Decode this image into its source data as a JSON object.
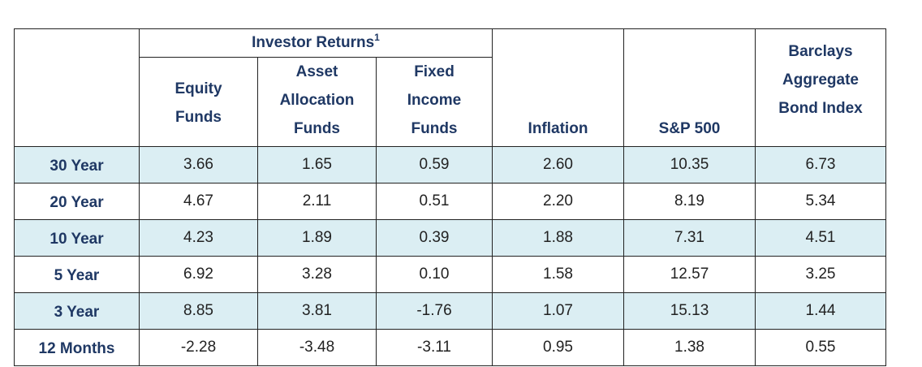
{
  "table": {
    "group_header": "Investor Returns",
    "group_footnote": "1",
    "columns": {
      "equity": [
        "Equity",
        "Funds"
      ],
      "asset": [
        "Asset",
        "Allocation",
        "Funds"
      ],
      "fixed": [
        "Fixed",
        "Income",
        "Funds"
      ],
      "inflation": "Inflation",
      "sp500": "S&P 500",
      "barclays": [
        "Barclays",
        "Aggregate",
        "Bond Index"
      ]
    },
    "rows": [
      {
        "label": "30 Year",
        "equity": "3.66",
        "asset": "1.65",
        "fixed": "0.59",
        "inflation": "2.60",
        "sp500": "10.35",
        "barclays": "6.73"
      },
      {
        "label": "20 Year",
        "equity": "4.67",
        "asset": "2.11",
        "fixed": "0.51",
        "inflation": "2.20",
        "sp500": "8.19",
        "barclays": "5.34"
      },
      {
        "label": "10 Year",
        "equity": "4.23",
        "asset": "1.89",
        "fixed": "0.39",
        "inflation": "1.88",
        "sp500": "7.31",
        "barclays": "4.51"
      },
      {
        "label": "5 Year",
        "equity": "6.92",
        "asset": "3.28",
        "fixed": "0.10",
        "inflation": "1.58",
        "sp500": "12.57",
        "barclays": "3.25"
      },
      {
        "label": "3 Year",
        "equity": "8.85",
        "asset": "3.81",
        "fixed": "-1.76",
        "inflation": "1.07",
        "sp500": "15.13",
        "barclays": "1.44"
      },
      {
        "label": "12 Months",
        "equity": "-2.28",
        "asset": "-3.48",
        "fixed": "-3.11",
        "inflation": "0.95",
        "sp500": "1.38",
        "barclays": "0.55"
      }
    ],
    "colors": {
      "header_text": "#1f3864",
      "band_fill": "#dbeef3",
      "border": "#222222"
    }
  }
}
